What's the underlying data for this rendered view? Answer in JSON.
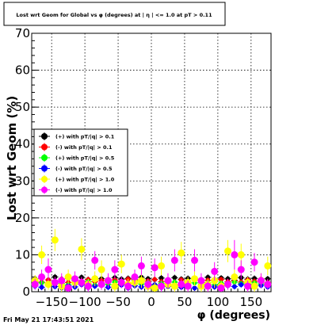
{
  "chart_data": {
    "type": "scatter",
    "title": "Lost wrt Geom for Global vs φ (degrees) at | η | <= 1.0 at pT > 0.11",
    "xlabel": "φ (degrees)",
    "ylabel": "Lost wrt Geom (%)",
    "xlim": [
      -180,
      180
    ],
    "ylim": [
      0,
      70
    ],
    "x_ticks": [
      -150,
      -100,
      -50,
      0,
      50,
      100,
      150
    ],
    "y_ticks": [
      0,
      10,
      20,
      30,
      40,
      50,
      60,
      70
    ],
    "grid": true,
    "legend_position": "left-middle",
    "series": [
      {
        "name": "(+) with pT/|q| > 0.1",
        "color": "#000000",
        "x": [
          -175,
          -165,
          -155,
          -145,
          -135,
          -125,
          -115,
          -105,
          -95,
          -85,
          -75,
          -65,
          -55,
          -45,
          -35,
          -25,
          -15,
          -5,
          5,
          15,
          25,
          35,
          45,
          55,
          65,
          75,
          85,
          95,
          105,
          115,
          125,
          135,
          145,
          155,
          165,
          175
        ],
        "y": [
          3.5,
          3.8,
          3.2,
          4.0,
          3.4,
          3.6,
          3.1,
          3.9,
          3.3,
          3.7,
          3.5,
          3.0,
          3.8,
          3.4,
          3.6,
          3.2,
          3.9,
          3.5,
          3.3,
          3.7,
          3.1,
          3.8,
          3.4,
          3.6,
          3.5,
          3.2,
          3.9,
          3.3,
          3.7,
          3.5,
          3.1,
          3.8,
          3.4,
          3.6,
          3.2,
          3.5
        ]
      },
      {
        "name": "(-) with pT/|q| > 0.1",
        "color": "#ff0000",
        "x": [
          -175,
          -165,
          -155,
          -145,
          -135,
          -125,
          -115,
          -105,
          -95,
          -85,
          -75,
          -65,
          -55,
          -45,
          -35,
          -25,
          -15,
          -5,
          5,
          15,
          25,
          35,
          45,
          55,
          65,
          75,
          85,
          95,
          105,
          115,
          125,
          135,
          145,
          155,
          165,
          175
        ],
        "y": [
          3.0,
          2.6,
          3.2,
          2.8,
          3.4,
          2.5,
          3.1,
          2.9,
          3.3,
          2.7,
          3.0,
          2.6,
          3.2,
          2.8,
          3.4,
          2.5,
          3.1,
          2.9,
          3.3,
          2.7,
          3.0,
          2.6,
          3.2,
          2.8,
          3.4,
          2.5,
          3.1,
          2.9,
          3.3,
          2.7,
          3.0,
          2.6,
          3.2,
          2.8,
          3.4,
          2.5
        ]
      },
      {
        "name": "(+) with pT/|q| > 0.5",
        "color": "#00ff00",
        "x": [
          -175,
          -165,
          -155,
          -145,
          -135,
          -125,
          -115,
          -105,
          -95,
          -85,
          -75,
          -65,
          -55,
          -45,
          -35,
          -25,
          -15,
          -5,
          5,
          15,
          25,
          35,
          45,
          55,
          65,
          75,
          85,
          95,
          105,
          115,
          125,
          135,
          145,
          155,
          165,
          175
        ],
        "y": [
          2.0,
          2.4,
          1.8,
          2.6,
          2.2,
          1.9,
          2.5,
          2.1,
          2.7,
          1.8,
          2.3,
          2.0,
          2.6,
          2.2,
          1.9,
          2.4,
          2.1,
          2.5,
          1.8,
          2.3,
          2.0,
          2.6,
          2.2,
          1.9,
          2.4,
          2.1,
          2.5,
          1.8,
          2.3,
          2.0,
          2.6,
          2.2,
          1.9,
          2.4,
          2.1,
          2.3
        ]
      },
      {
        "name": "(-) with pT/|q| > 0.5",
        "color": "#0000ff",
        "x": [
          -175,
          -165,
          -155,
          -145,
          -135,
          -125,
          -115,
          -105,
          -95,
          -85,
          -75,
          -65,
          -55,
          -45,
          -35,
          -25,
          -15,
          -5,
          5,
          15,
          25,
          35,
          45,
          55,
          65,
          75,
          85,
          95,
          105,
          115,
          125,
          135,
          145,
          155,
          165,
          175
        ],
        "y": [
          1.5,
          1.2,
          1.8,
          1.4,
          1.0,
          1.6,
          1.3,
          1.9,
          1.1,
          1.5,
          1.7,
          1.2,
          1.4,
          1.8,
          1.0,
          1.6,
          1.3,
          1.5,
          1.9,
          1.1,
          1.4,
          1.7,
          1.2,
          1.6,
          1.0,
          1.5,
          1.8,
          1.3,
          1.1,
          1.6,
          1.4,
          1.9,
          1.2,
          1.5,
          1.7,
          1.3
        ]
      },
      {
        "name": "(+) with pT/|q| > 1.0",
        "color": "#ffff00",
        "x": [
          -175,
          -165,
          -155,
          -145,
          -135,
          -125,
          -115,
          -105,
          -95,
          -85,
          -75,
          -65,
          -55,
          -45,
          -35,
          -25,
          -15,
          -5,
          5,
          15,
          25,
          35,
          45,
          55,
          65,
          75,
          85,
          95,
          105,
          115,
          125,
          135,
          145,
          155,
          165,
          175
        ],
        "y": [
          3.0,
          10.0,
          2.0,
          14.0,
          1.5,
          4.0,
          2.5,
          11.5,
          2.0,
          3.5,
          6.0,
          3.0,
          1.5,
          7.5,
          2.0,
          2.5,
          3.0,
          1.5,
          1.0,
          7.0,
          2.0,
          1.5,
          10.5,
          2.5,
          3.5,
          1.5,
          2.0,
          3.0,
          1.5,
          11.0,
          4.0,
          10.0,
          2.5,
          1.5,
          3.0,
          7.0
        ]
      },
      {
        "name": "(-) with pT/|q| > 1.0",
        "color": "#ff00ff",
        "x": [
          -175,
          -165,
          -155,
          -145,
          -135,
          -125,
          -115,
          -105,
          -95,
          -85,
          -75,
          -65,
          -55,
          -45,
          -35,
          -25,
          -15,
          -5,
          5,
          15,
          25,
          35,
          45,
          55,
          65,
          75,
          85,
          95,
          105,
          115,
          125,
          135,
          145,
          155,
          165,
          175
        ],
        "y": [
          2.0,
          4.0,
          6.0,
          2.5,
          3.0,
          1.0,
          3.5,
          2.5,
          1.5,
          8.5,
          2.0,
          3.0,
          6.0,
          2.5,
          1.5,
          4.0,
          7.0,
          2.0,
          6.5,
          1.5,
          3.0,
          8.5,
          2.0,
          1.5,
          8.5,
          3.0,
          1.5,
          5.5,
          1.0,
          2.0,
          10.0,
          6.0,
          1.5,
          8.0,
          3.0,
          2.0
        ]
      }
    ],
    "yellow_errors": [
      1.5,
      2.5,
      1.5,
      3.0,
      1.5,
      2.0,
      1.5,
      3.0,
      1.5,
      2.0,
      2.5,
      1.5,
      1.5,
      2.5,
      1.5,
      1.5,
      2.0,
      1.5,
      1.5,
      2.5,
      1.5,
      1.5,
      3.0,
      1.5,
      2.0,
      1.5,
      1.5,
      2.0,
      1.5,
      3.0,
      2.0,
      3.0,
      1.5,
      1.5,
      2.0,
      2.5
    ],
    "magenta_errors": [
      1.5,
      2.0,
      3.0,
      1.5,
      2.0,
      1.0,
      2.0,
      1.5,
      1.5,
      2.5,
      1.5,
      2.0,
      2.5,
      1.5,
      1.5,
      2.0,
      2.5,
      1.5,
      2.5,
      1.5,
      2.0,
      3.0,
      1.5,
      1.5,
      3.0,
      2.0,
      1.5,
      2.5,
      1.0,
      1.5,
      4.0,
      2.5,
      1.5,
      2.5,
      2.0,
      1.5
    ]
  },
  "footer": {
    "timestamp": "Fri May 21 17:43:51 2021"
  }
}
